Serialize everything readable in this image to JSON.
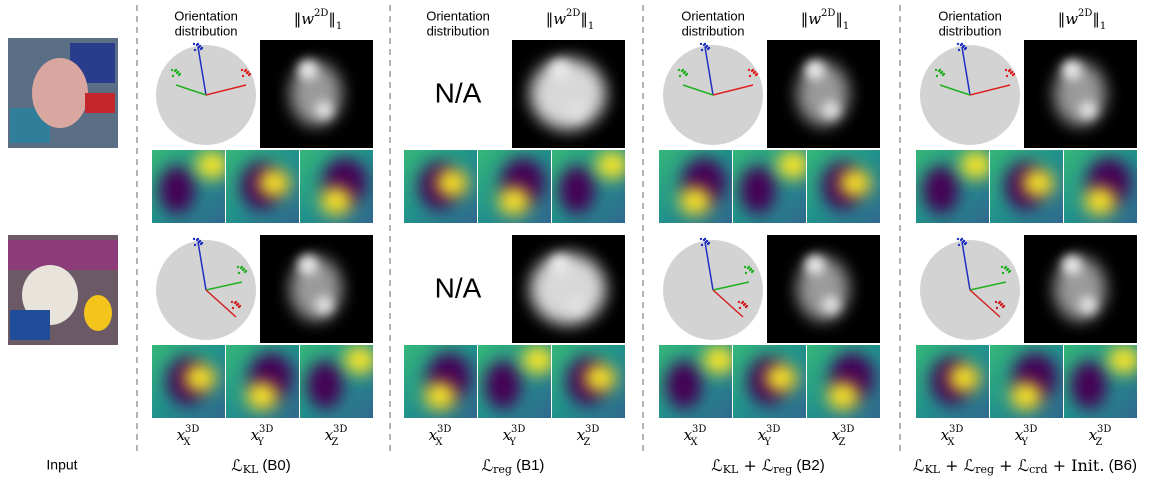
{
  "input_label": "Input",
  "orientation_label": [
    "Orientation",
    "distribution"
  ],
  "norm_label": {
    "base": "w",
    "sup": "2D",
    "sub": "1"
  },
  "feature_labels": [
    {
      "base": "x",
      "sub": "X",
      "sup": "3D"
    },
    {
      "base": "x",
      "sub": "Y",
      "sup": "3D"
    },
    {
      "base": "x",
      "sub": "Z",
      "sup": "3D"
    }
  ],
  "term_joiner": "+",
  "columns": [
    {
      "terms": [
        {
          "text": "ℒ",
          "sub": "KL"
        }
      ],
      "suffix": "(B0)"
    },
    {
      "terms": [
        {
          "text": "ℒ",
          "sub": "reg"
        }
      ],
      "suffix": "(B1)",
      "orientation_text": "N/A"
    },
    {
      "terms": [
        {
          "text": "ℒ",
          "sub": "KL"
        },
        {
          "text": "ℒ",
          "sub": "reg"
        }
      ],
      "suffix": "(B2)"
    },
    {
      "terms": [
        {
          "text": "ℒ",
          "sub": "KL"
        },
        {
          "text": "ℒ",
          "sub": "reg"
        },
        {
          "text": "ℒ",
          "sub": "crd"
        },
        {
          "text": "Init."
        }
      ],
      "suffix": "(B6)"
    }
  ]
}
